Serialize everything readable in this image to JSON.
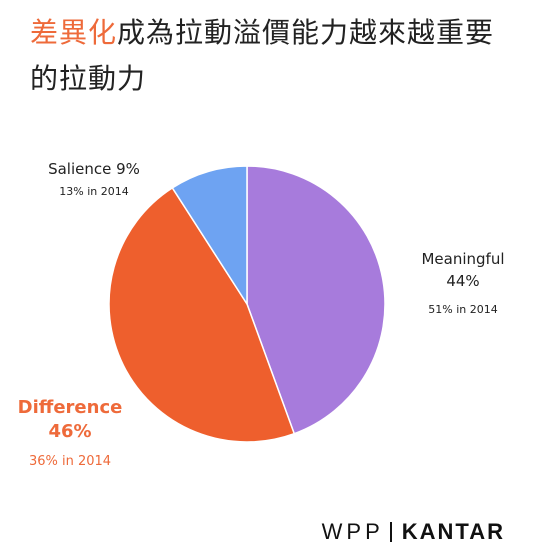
{
  "title": {
    "highlight": "差異化",
    "rest": "成為拉動溢價能力越來越重要的拉動力"
  },
  "colors": {
    "meaningful": "#a77bdc",
    "difference": "#ee5f2d",
    "salience": "#6ea3f2",
    "accent": "#ee6a3a"
  },
  "chart_data": {
    "type": "pie",
    "slices": [
      {
        "name": "Meaningful",
        "value": 44,
        "label": "44%",
        "previous": "51% in 2014"
      },
      {
        "name": "Difference",
        "value": 46,
        "label": "46%",
        "previous": "36% in 2014"
      },
      {
        "name": "Salience",
        "value": 9,
        "label": "Salience 9%",
        "previous": "13% in 2014"
      }
    ]
  },
  "branding": {
    "left": "WPP",
    "right": "KANTAR"
  }
}
